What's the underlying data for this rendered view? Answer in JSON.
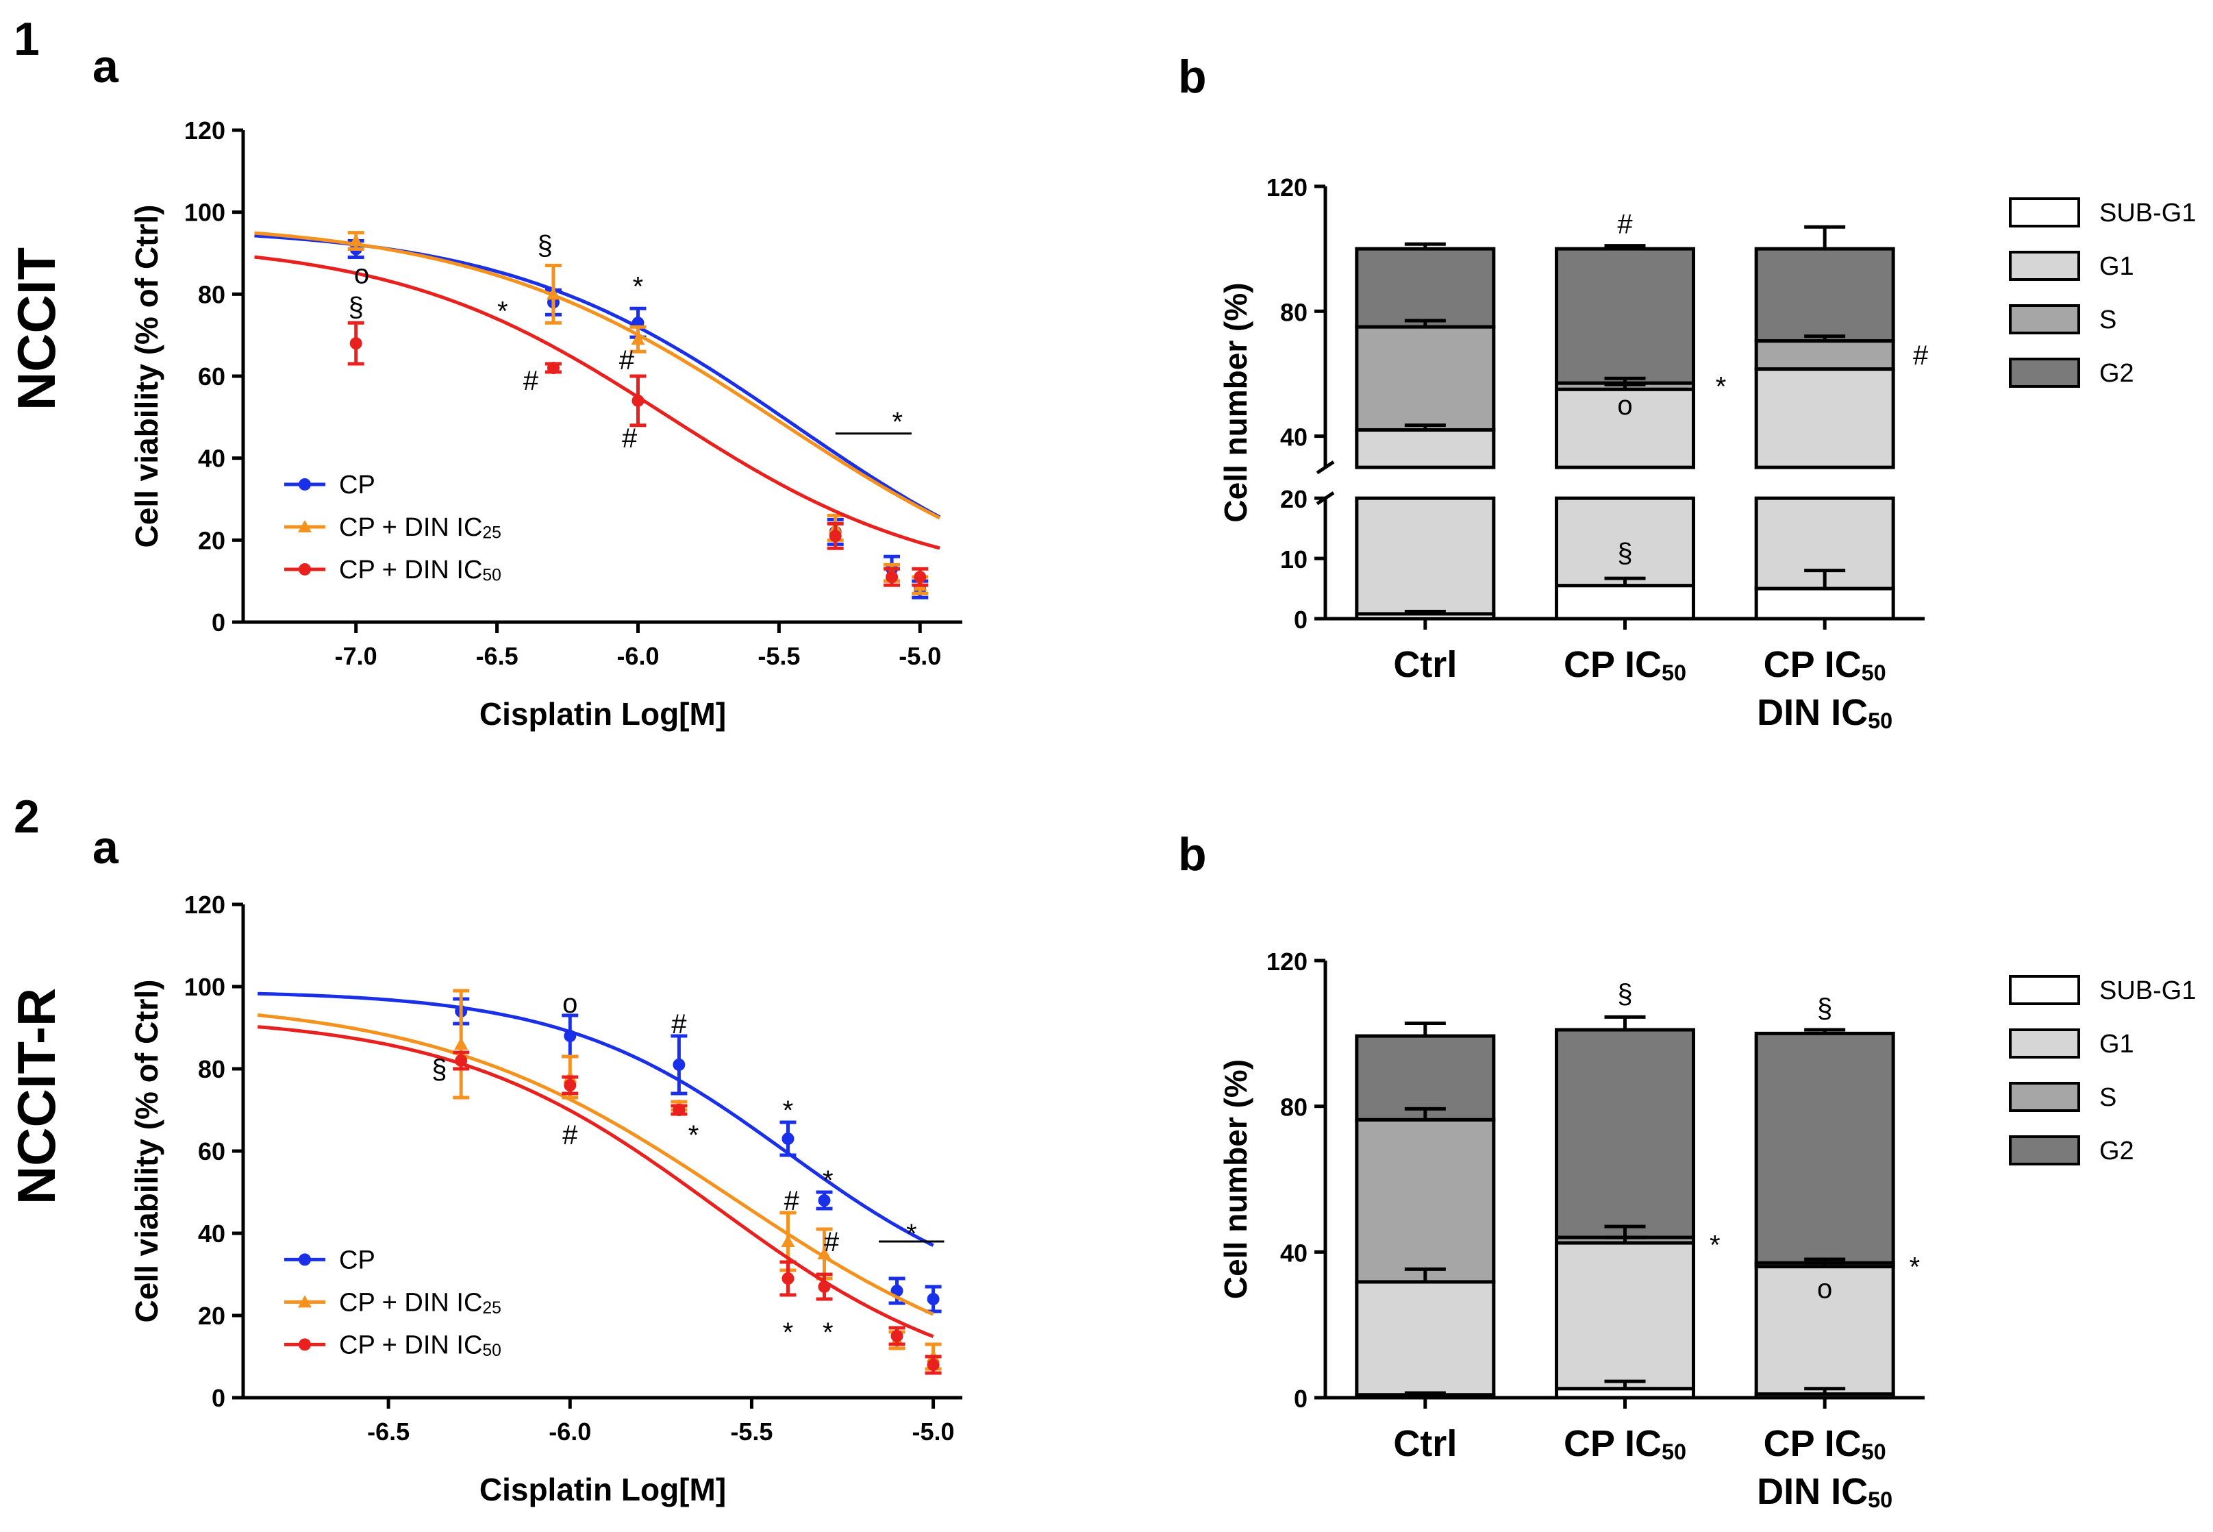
{
  "figure": {
    "panel_numbers": [
      "1",
      "2"
    ],
    "row_labels": [
      "NCCIT",
      "NCCIT-R"
    ],
    "panel_letters": [
      "a",
      "b"
    ]
  },
  "colors": {
    "CP": "#1a2fe8",
    "CP + DIN IC25": "#f5921e",
    "CP + DIN IC50": "#e8201e",
    "SUB-G1": "#ffffff",
    "G1": "#d6d6d6",
    "S": "#a6a6a6",
    "G2": "#7a7a7a"
  },
  "chart_data": [
    {
      "id": "1a",
      "type": "line",
      "xlabel": "Cisplatin Log[M]",
      "ylabel": "Cell viability (% of Ctrl)",
      "xlim": [
        -7.4,
        -4.85
      ],
      "ylim": [
        0,
        120
      ],
      "xticks": [
        -7.0,
        -6.5,
        -6.0,
        -5.5,
        -5.0
      ],
      "xtick_labels": [
        "-7.0",
        "-6.5",
        "-6.0",
        "-5.5",
        "-5.0"
      ],
      "yticks": [
        0,
        20,
        40,
        60,
        80,
        100,
        120
      ],
      "ytick_labels": [
        "0",
        "20",
        "40",
        "60",
        "80",
        "100",
        "120"
      ],
      "legend_position": "bottom-left",
      "series": [
        {
          "name": "CP",
          "label_main": "CP",
          "label_sub": "",
          "fit": {
            "top": 96.5,
            "bottom": 0,
            "logec50": -5.45,
            "hill": 0.85
          },
          "points": [
            {
              "x": -7.0,
              "y": 91,
              "err": 2
            },
            {
              "x": -6.3,
              "y": 78,
              "err": 3
            },
            {
              "x": -6.0,
              "y": 73,
              "err": 3.5
            },
            {
              "x": -5.3,
              "y": 22,
              "err": 3
            },
            {
              "x": -5.1,
              "y": 13,
              "err": 3
            },
            {
              "x": -5.0,
              "y": 8,
              "err": 2
            }
          ]
        },
        {
          "name": "CP + DIN IC25",
          "label_main": "CP + DIN IC",
          "label_sub": "25",
          "fit": {
            "top": 98,
            "bottom": 0,
            "logec50": -5.5,
            "hill": 0.8
          },
          "points": [
            {
              "x": -7.0,
              "y": 93,
              "err": 2
            },
            {
              "x": -6.3,
              "y": 80,
              "err": 7
            },
            {
              "x": -6.0,
              "y": 69,
              "err": 3
            },
            {
              "x": -5.3,
              "y": 23,
              "err": 3
            },
            {
              "x": -5.1,
              "y": 12,
              "err": 2
            },
            {
              "x": -5.0,
              "y": 9,
              "err": 2
            }
          ]
        },
        {
          "name": "CP + DIN IC50",
          "label_main": "CP + DIN IC",
          "label_sub": "50",
          "fit": {
            "top": 93,
            "bottom": 8,
            "logec50": -5.9,
            "hill": 0.9
          },
          "points": [
            {
              "x": -7.0,
              "y": 68,
              "err": 5
            },
            {
              "x": -6.3,
              "y": 62,
              "err": 1
            },
            {
              "x": -6.0,
              "y": 54,
              "err": 6
            },
            {
              "x": -5.3,
              "y": 21,
              "err": 3
            },
            {
              "x": -5.1,
              "y": 11,
              "err": 2
            },
            {
              "x": -5.0,
              "y": 11,
              "err": 2
            }
          ]
        }
      ],
      "annotations": [
        {
          "text": "o",
          "x": -6.98,
          "y": 85
        },
        {
          "text": "§",
          "x": -7.0,
          "y": 77
        },
        {
          "text": "§",
          "x": -6.33,
          "y": 92
        },
        {
          "text": "*",
          "x": -6.48,
          "y": 76
        },
        {
          "text": "#",
          "x": -6.38,
          "y": 59
        },
        {
          "text": "*",
          "x": -6.0,
          "y": 82
        },
        {
          "text": "#",
          "x": -6.04,
          "y": 64
        },
        {
          "text": "#",
          "x": -6.03,
          "y": 45
        },
        {
          "text": "*",
          "x": -5.08,
          "y": 49
        }
      ],
      "sig_line": {
        "x_from": -5.3,
        "x_to": -5.03,
        "y": 46
      }
    },
    {
      "id": "2a",
      "type": "line",
      "xlabel": "Cisplatin Log[M]",
      "ylabel": "Cell viability (% of Ctrl)",
      "xlim": [
        -6.9,
        -4.92
      ],
      "ylim": [
        0,
        120
      ],
      "xticks": [
        -6.5,
        -6.0,
        -5.5,
        -5.0
      ],
      "xtick_labels": [
        "-6.5",
        "-6.0",
        "-5.5",
        "-5.0"
      ],
      "yticks": [
        0,
        20,
        40,
        60,
        80,
        100,
        120
      ],
      "ytick_labels": [
        "0",
        "20",
        "40",
        "60",
        "80",
        "100",
        "120"
      ],
      "legend_position": "bottom-left",
      "series": [
        {
          "name": "CP",
          "label_main": "CP",
          "label_sub": "",
          "fit": {
            "top": 99,
            "bottom": 20,
            "logec50": -5.4,
            "hill": 1.4
          },
          "points": [
            {
              "x": -6.3,
              "y": 94,
              "err": 3
            },
            {
              "x": -6.0,
              "y": 88,
              "err": 5
            },
            {
              "x": -5.7,
              "y": 81,
              "err": 7
            },
            {
              "x": -5.4,
              "y": 63,
              "err": 4
            },
            {
              "x": -5.3,
              "y": 48,
              "err": 2
            },
            {
              "x": -5.1,
              "y": 26,
              "err": 3
            },
            {
              "x": -5.0,
              "y": 24,
              "err": 3
            }
          ]
        },
        {
          "name": "CP + DIN IC25",
          "label_main": "CP + DIN IC",
          "label_sub": "25",
          "fit": {
            "top": 97,
            "bottom": 0,
            "logec50": -5.55,
            "hill": 1.05
          },
          "points": [
            {
              "x": -6.3,
              "y": 86,
              "err": 13
            },
            {
              "x": -6.0,
              "y": 78,
              "err": 5
            },
            {
              "x": -5.7,
              "y": 71,
              "err": 1
            },
            {
              "x": -5.4,
              "y": 38,
              "err": 7
            },
            {
              "x": -5.3,
              "y": 35,
              "err": 6
            },
            {
              "x": -5.1,
              "y": 14,
              "err": 2
            },
            {
              "x": -5.0,
              "y": 10,
              "err": 3
            }
          ]
        },
        {
          "name": "CP + DIN IC50",
          "label_main": "CP + DIN IC",
          "label_sub": "50",
          "fit": {
            "top": 93,
            "bottom": 0,
            "logec50": -5.6,
            "hill": 1.2
          },
          "points": [
            {
              "x": -6.3,
              "y": 82,
              "err": 2
            },
            {
              "x": -6.0,
              "y": 76,
              "err": 2
            },
            {
              "x": -5.7,
              "y": 70,
              "err": 1
            },
            {
              "x": -5.4,
              "y": 29,
              "err": 4
            },
            {
              "x": -5.3,
              "y": 27,
              "err": 3
            },
            {
              "x": -5.1,
              "y": 15,
              "err": 2
            },
            {
              "x": -5.0,
              "y": 8,
              "err": 2
            }
          ]
        }
      ],
      "annotations": [
        {
          "text": "§",
          "x": -6.36,
          "y": 80
        },
        {
          "text": "o",
          "x": -6.0,
          "y": 96
        },
        {
          "text": "#",
          "x": -6.0,
          "y": 64
        },
        {
          "text": "#",
          "x": -5.7,
          "y": 91
        },
        {
          "text": "*",
          "x": -5.66,
          "y": 64
        },
        {
          "text": "*",
          "x": -5.4,
          "y": 70
        },
        {
          "text": "#",
          "x": -5.39,
          "y": 48
        },
        {
          "text": "*",
          "x": -5.4,
          "y": 16
        },
        {
          "text": "*",
          "x": -5.29,
          "y": 53
        },
        {
          "text": "#",
          "x": -5.28,
          "y": 38
        },
        {
          "text": "*",
          "x": -5.29,
          "y": 16
        },
        {
          "text": "*",
          "x": -5.06,
          "y": 40
        }
      ],
      "sig_line": {
        "x_from": -5.15,
        "x_to": -4.97,
        "y": 38
      }
    },
    {
      "id": "1b",
      "type": "bar",
      "stacked": true,
      "broken_axis": true,
      "ylabel": "Cell number (%)",
      "categories": [
        "Ctrl",
        "CP IC50",
        "CP IC50 DIN IC50"
      ],
      "category_lines": [
        [
          {
            "main": "Ctrl",
            "sub": ""
          }
        ],
        [
          {
            "main": "CP IC",
            "sub": "50"
          }
        ],
        [
          {
            "main": "CP IC",
            "sub": "50"
          },
          {
            "main": "DIN IC",
            "sub": "50"
          }
        ]
      ],
      "yticks_upper": [
        40,
        80,
        120
      ],
      "yticks_upper_labels": [
        "40",
        "80",
        "120"
      ],
      "yticks_lower": [
        0,
        10,
        20
      ],
      "yticks_lower_labels": [
        "0",
        "10",
        "20"
      ],
      "upper_range": [
        30,
        120
      ],
      "lower_range": [
        0,
        20
      ],
      "legend": [
        "SUB-G1",
        "G1",
        "S",
        "G2"
      ],
      "series": [
        {
          "name": "SUB-G1",
          "values": [
            0.8,
            5.5,
            5.0
          ],
          "errors": [
            0.4,
            1.2,
            3.0
          ]
        },
        {
          "name": "G1",
          "values": [
            41.2,
            49.5,
            56.5
          ],
          "errors": [
            1.5,
            1.5,
            0
          ]
        },
        {
          "name": "S",
          "values": [
            33,
            2,
            9
          ],
          "errors": [
            2,
            1.5,
            1.5
          ]
        },
        {
          "name": "G2",
          "values": [
            25,
            43,
            29.5
          ],
          "errors": [
            1.5,
            1,
            7
          ]
        }
      ],
      "annotations": [
        {
          "text": "#",
          "cat": 1,
          "dx": 0,
          "y": 108
        },
        {
          "text": "*",
          "cat": 1,
          "dx": 0.48,
          "y": 56
        },
        {
          "text": "o",
          "cat": 1,
          "dx": 0,
          "y": 50
        },
        {
          "text": "§",
          "cat": 1,
          "dx": 0,
          "y": 11
        },
        {
          "text": "#",
          "cat": 2,
          "dx": 0.48,
          "y": 66
        }
      ]
    },
    {
      "id": "2b",
      "type": "bar",
      "stacked": true,
      "broken_axis": false,
      "ylabel": "Cell number (%)",
      "categories": [
        "Ctrl",
        "CP IC50",
        "CP IC50 DIN IC50"
      ],
      "category_lines": [
        [
          {
            "main": "Ctrl",
            "sub": ""
          }
        ],
        [
          {
            "main": "CP IC",
            "sub": "50"
          }
        ],
        [
          {
            "main": "CP IC",
            "sub": "50"
          },
          {
            "main": "DIN IC",
            "sub": "50"
          }
        ]
      ],
      "yticks": [
        0,
        40,
        80,
        120
      ],
      "ytick_labels": [
        "0",
        "40",
        "80",
        "120"
      ],
      "ylim": [
        0,
        120
      ],
      "legend": [
        "SUB-G1",
        "G1",
        "S",
        "G2"
      ],
      "series": [
        {
          "name": "SUB-G1",
          "values": [
            0.8,
            2.5,
            1.0
          ],
          "errors": [
            0.5,
            2,
            1.5
          ]
        },
        {
          "name": "G1",
          "values": [
            31,
            40,
            35
          ],
          "errors": [
            3.5,
            1.5,
            1
          ]
        },
        {
          "name": "S",
          "values": [
            44.5,
            1.5,
            1.0
          ],
          "errors": [
            3,
            3,
            1
          ]
        },
        {
          "name": "G2",
          "values": [
            23,
            57,
            63
          ],
          "errors": [
            3.5,
            3.5,
            1
          ]
        }
      ],
      "annotations": [
        {
          "text": "§",
          "cat": 1,
          "dx": 0,
          "y": 111
        },
        {
          "text": "*",
          "cat": 1,
          "dx": 0.45,
          "y": 42
        },
        {
          "text": "§",
          "cat": 2,
          "dx": 0,
          "y": 107
        },
        {
          "text": "*",
          "cat": 2,
          "dx": 0.45,
          "y": 36
        },
        {
          "text": "o",
          "cat": 2,
          "dx": 0,
          "y": 30
        }
      ]
    }
  ]
}
